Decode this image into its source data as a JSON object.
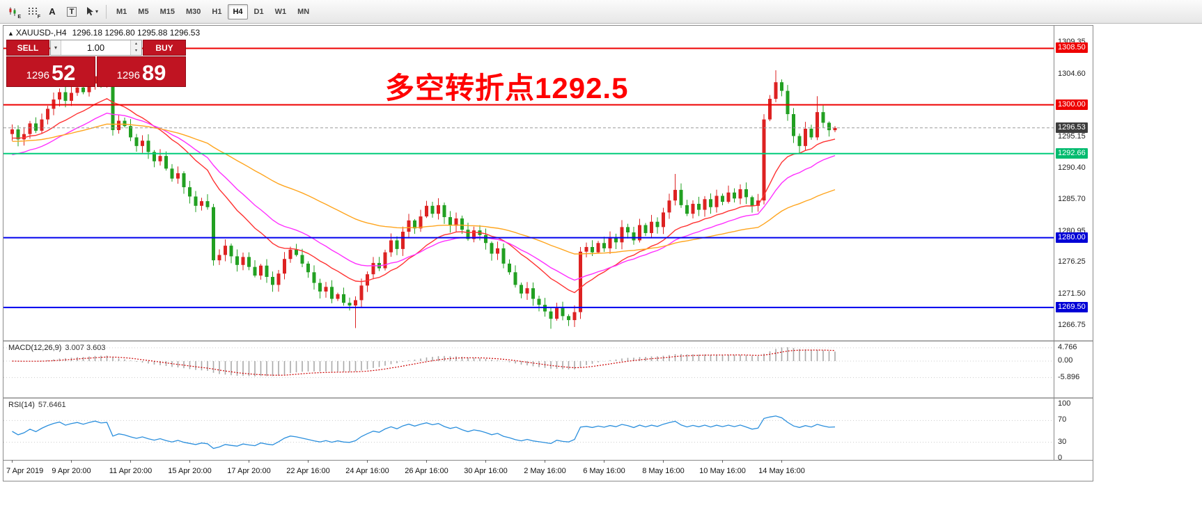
{
  "toolbar": {
    "tools": [
      {
        "name": "chart-candles",
        "badge": "E"
      },
      {
        "name": "indicators-grid",
        "badge": "F"
      },
      {
        "name": "text-tool",
        "glyph": "A"
      },
      {
        "name": "template-tool",
        "glyph": "T"
      },
      {
        "name": "cursor-tool",
        "glyph": "▾"
      }
    ],
    "timeframes": [
      {
        "label": "M1",
        "active": false
      },
      {
        "label": "M5",
        "active": false
      },
      {
        "label": "M15",
        "active": false
      },
      {
        "label": "M30",
        "active": false
      },
      {
        "label": "H1",
        "active": false
      },
      {
        "label": "H4",
        "active": true
      },
      {
        "label": "D1",
        "active": false
      },
      {
        "label": "W1",
        "active": false
      },
      {
        "label": "MN",
        "active": false
      }
    ]
  },
  "chart": {
    "collapse_icon": "▲",
    "header_symbol": "XAUUSD-,H4",
    "header_ohlc": "1296.18 1296.80 1295.88 1296.53",
    "annotation": "多空转折点1292.5",
    "trade": {
      "sell_label": "SELL",
      "buy_label": "BUY",
      "volume": "1.00",
      "dropdown_icon": "▾",
      "up_icon": "▴",
      "down_icon": "▾",
      "sell_price_main": "1296",
      "sell_price_big": "52",
      "buy_price_main": "1296",
      "buy_price_big": "89"
    }
  },
  "chart_data": {
    "type": "candlestick",
    "symbol": "XAUUSD-",
    "timeframe": "H4",
    "ohlc_display": {
      "open": 1296.18,
      "high": 1296.8,
      "low": 1295.88,
      "close": 1296.53
    },
    "price_axis_ticks": [
      1309.35,
      1304.6,
      1295.15,
      1290.4,
      1285.7,
      1280.95,
      1276.25,
      1271.5,
      1266.75
    ],
    "levels": [
      {
        "price": 1308.5,
        "color": "#ee0000",
        "width": 2,
        "badge": "#ee0000"
      },
      {
        "price": 1300.0,
        "color": "#ee0000",
        "width": 2,
        "badge": "#ee0000"
      },
      {
        "price": 1296.53,
        "color": "#9a9a9a",
        "width": 1,
        "dash": "4 3",
        "badge": "#3d3d3d"
      },
      {
        "price": 1292.66,
        "color": "#00cc7a",
        "width": 2,
        "badge": "#00bb6f"
      },
      {
        "price": 1280.0,
        "color": "#0000ee",
        "width": 2,
        "badge": "#0000d6"
      },
      {
        "price": 1269.5,
        "color": "#0000ee",
        "width": 2,
        "badge": "#0000d6"
      }
    ],
    "first_open": 1295.6,
    "closes": [
      1296.3,
      1294.8,
      1295.6,
      1297.2,
      1296.1,
      1297.8,
      1299.4,
      1300.8,
      1301.9,
      1300.6,
      1301.8,
      1302.6,
      1301.9,
      1303.2,
      1304.3,
      1303.6,
      1304.0,
      1296.2,
      1297.6,
      1296.8,
      1295.1,
      1293.8,
      1294.6,
      1292.9,
      1291.5,
      1292.3,
      1290.4,
      1288.9,
      1289.7,
      1287.6,
      1286.2,
      1284.8,
      1285.5,
      1284.6,
      1276.6,
      1277.4,
      1278.8,
      1277.2,
      1275.9,
      1277.1,
      1275.6,
      1274.3,
      1275.8,
      1274.1,
      1272.9,
      1274.6,
      1276.8,
      1278.2,
      1277.4,
      1276.1,
      1274.8,
      1273.2,
      1271.9,
      1272.6,
      1270.8,
      1271.5,
      1270.2,
      1269.8,
      1270.6,
      1272.8,
      1274.5,
      1276.2,
      1275.4,
      1277.8,
      1279.6,
      1278.3,
      1280.9,
      1282.6,
      1281.4,
      1283.2,
      1284.8,
      1283.6,
      1284.9,
      1283.1,
      1281.8,
      1282.9,
      1281.2,
      1279.8,
      1281.1,
      1280.4,
      1279.2,
      1277.6,
      1278.4,
      1276.1,
      1274.8,
      1272.9,
      1271.6,
      1272.4,
      1270.8,
      1269.9,
      1268.9,
      1267.8,
      1269.4,
      1268.2,
      1267.6,
      1268.8,
      1277.9,
      1278.6,
      1277.8,
      1279.2,
      1278.4,
      1280.1,
      1279.3,
      1281.6,
      1280.8,
      1279.6,
      1281.9,
      1280.7,
      1282.4,
      1281.6,
      1283.8,
      1285.6,
      1287.2,
      1284.9,
      1283.6,
      1285.1,
      1284.2,
      1285.8,
      1284.6,
      1286.3,
      1285.4,
      1286.8,
      1285.9,
      1287.3,
      1286.1,
      1284.8,
      1285.6,
      1297.8,
      1300.9,
      1303.4,
      1302.1,
      1298.6,
      1295.3,
      1293.8,
      1296.4,
      1295.1,
      1298.9,
      1297.3,
      1296.18,
      1296.53
    ],
    "wick_overrides": {
      "highs": {
        "14": 1305.8,
        "112": 1289.6,
        "129": 1305.2,
        "136": 1301.3,
        "139": 1296.8
      },
      "lows": {
        "34": 1275.8,
        "58": 1266.4,
        "91": 1266.3,
        "133": 1292.6,
        "139": 1295.88
      }
    },
    "time_labels": [
      [
        "7 Apr 2019",
        0
      ],
      [
        "9 Apr 20:00",
        10
      ],
      [
        "11 Apr 20:00",
        20
      ],
      [
        "15 Apr 20:00",
        30
      ],
      [
        "17 Apr 20:00",
        40
      ],
      [
        "22 Apr 16:00",
        50
      ],
      [
        "24 Apr 16:00",
        60
      ],
      [
        "26 Apr 16:00",
        70
      ],
      [
        "30 Apr 16:00",
        80
      ],
      [
        "2 May 16:00",
        90
      ],
      [
        "6 May 16:00",
        100
      ],
      [
        "8 May 16:00",
        110
      ],
      [
        "10 May 16:00",
        120
      ],
      [
        "14 May 16:00",
        130
      ]
    ],
    "moving_averages": [
      {
        "period": 16,
        "seed": 1295.0,
        "color": "#ff3232",
        "name": "ma-fast-line"
      },
      {
        "period": 26,
        "seed": 1292.5,
        "color": "#ff2fff",
        "name": "ma-mid-line"
      },
      {
        "period": 60,
        "seed": 1294.5,
        "color": "#ffa51e",
        "name": "ma-slow-line"
      }
    ],
    "indicators": {
      "macd": {
        "label": "MACD(12,26,9)",
        "values_text": "3.007 3.603",
        "fast": 12,
        "slow": 26,
        "signal": 9,
        "axis_values": [
          4.766,
          0,
          -5.896
        ],
        "axis_labels": [
          "4.766",
          "0.00",
          "-5.896"
        ],
        "histogram_color": "#a9a9a9",
        "signal_color": "#cc0000"
      },
      "rsi": {
        "label": "RSI(14)",
        "value_text": "57.6461",
        "period": 14,
        "axis_values": [
          100,
          70,
          30,
          0
        ],
        "axis_labels": [
          "100",
          "70",
          "30",
          "0"
        ],
        "level_lines": [
          70,
          30
        ],
        "line_color": "#2b8fdd"
      }
    },
    "colors": {
      "up": "#dd2222",
      "down": "#22a022",
      "background": "#ffffff"
    }
  }
}
